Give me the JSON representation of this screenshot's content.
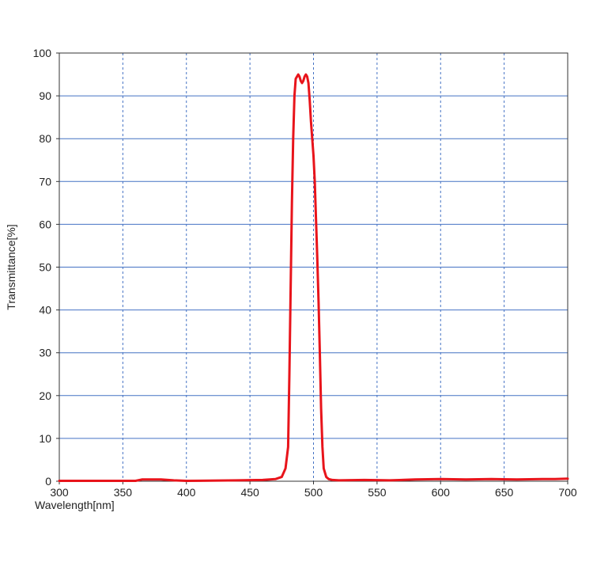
{
  "chart_data": {
    "type": "line",
    "title": "",
    "xlabel": "Wavelength[nm]",
    "ylabel": "Transmittance[%]",
    "xlim": [
      300,
      700
    ],
    "ylim": [
      0,
      100
    ],
    "x_ticks": [
      300,
      350,
      400,
      450,
      500,
      550,
      600,
      650,
      700
    ],
    "y_ticks": [
      0,
      10,
      20,
      30,
      40,
      50,
      60,
      70,
      80,
      90,
      100
    ],
    "x_tick_labels": [
      "300",
      "350",
      "400",
      "450",
      "500",
      "550",
      "600",
      "650",
      "700"
    ],
    "y_tick_labels": [
      "0",
      "10",
      "20",
      "30",
      "40",
      "50",
      "60",
      "70",
      "80",
      "90",
      "100"
    ],
    "grid": {
      "horizontal": true,
      "horizontal_style": "solid",
      "vertical": true,
      "vertical_style": "dashed"
    },
    "colors": {
      "series": "#e8141b",
      "grid": "#4472c4",
      "axis": "#333333"
    },
    "series": [
      {
        "x": [
          300,
          360,
          365,
          380,
          390,
          400,
          440,
          460,
          470,
          475,
          478,
          480,
          481,
          482,
          483,
          484,
          485,
          486,
          487,
          488,
          489,
          490,
          491,
          492,
          493,
          494,
          495,
          496,
          497,
          498,
          499,
          500,
          501,
          502,
          503,
          504,
          505,
          506,
          507,
          508,
          510,
          512,
          515,
          520,
          540,
          560,
          580,
          600,
          620,
          640,
          660,
          680,
          690,
          700
        ],
        "y": [
          0.1,
          0.1,
          0.4,
          0.4,
          0.2,
          0.1,
          0.2,
          0.3,
          0.5,
          1,
          3,
          8,
          25,
          45,
          65,
          80,
          90,
          94,
          94.5,
          95,
          94.5,
          93.5,
          93,
          93.5,
          94.5,
          95,
          94.5,
          93,
          89,
          84,
          80,
          76,
          70,
          61,
          52,
          42,
          30,
          17,
          8,
          3,
          1,
          0.5,
          0.3,
          0.2,
          0.3,
          0.2,
          0.4,
          0.5,
          0.4,
          0.5,
          0.4,
          0.5,
          0.5,
          0.6
        ]
      }
    ]
  }
}
